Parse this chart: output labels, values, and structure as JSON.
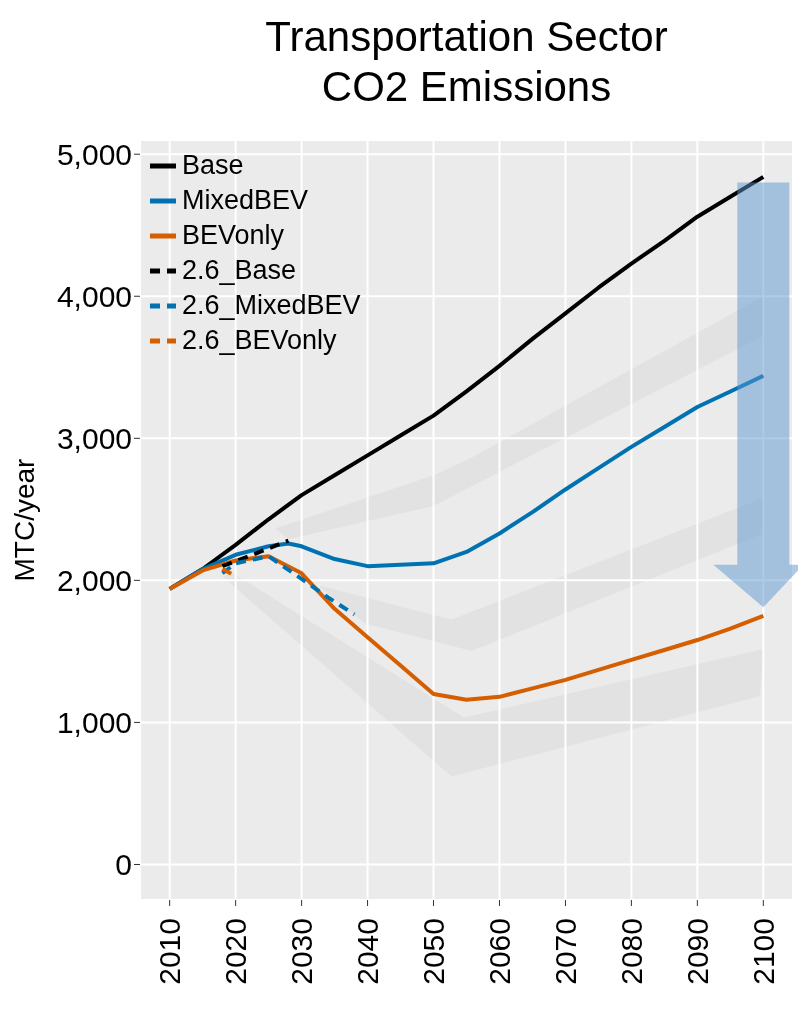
{
  "chart_data": {
    "type": "line",
    "title": "Transportation Sector CO2 Emissions",
    "ylabel": "MTC/year",
    "xlim": [
      2005.5,
      2104.5
    ],
    "xticks": [
      2010,
      2020,
      2030,
      2040,
      2050,
      2060,
      2070,
      2080,
      2090,
      2100
    ],
    "ylim": [
      -250,
      5100
    ],
    "yticks": [
      0,
      {
        "value": 1000,
        "label": "1,000"
      },
      {
        "value": 2000,
        "label": "2,000"
      },
      {
        "value": 3000,
        "label": "3,000"
      },
      {
        "value": 4000,
        "label": "4,000"
      },
      {
        "value": 5000,
        "label": "5,000"
      }
    ],
    "grid": true,
    "legend": "top left",
    "marker": "none",
    "series": [
      {
        "name": "Base",
        "color": "#000000",
        "line_style": "solid",
        "x": [
          2010,
          2015,
          2020,
          2025,
          2030,
          2035,
          2040,
          2045,
          2050,
          2055,
          2060,
          2065,
          2070,
          2075,
          2080,
          2085,
          2090,
          2095,
          2100
        ],
        "values": [
          1940,
          2080,
          2250,
          2430,
          2600,
          2740,
          2880,
          3020,
          3160,
          3330,
          3510,
          3700,
          3880,
          4060,
          4230,
          4390,
          4560,
          4700,
          4840
        ]
      },
      {
        "name": "MixedBEV",
        "color": "#0072b2",
        "line_style": "solid",
        "x": [
          2010,
          2015,
          2020,
          2025,
          2028,
          2030,
          2035,
          2040,
          2045,
          2050,
          2055,
          2060,
          2065,
          2070,
          2075,
          2080,
          2085,
          2090,
          2095,
          2100
        ],
        "values": [
          1940,
          2080,
          2180,
          2240,
          2260,
          2240,
          2150,
          2100,
          2110,
          2120,
          2200,
          2330,
          2480,
          2640,
          2790,
          2940,
          3080,
          3220,
          3330,
          3440
        ]
      },
      {
        "name": "BEVonly",
        "color": "#d55e00",
        "line_style": "solid",
        "x": [
          2010,
          2015,
          2020,
          2025,
          2030,
          2035,
          2040,
          2045,
          2050,
          2055,
          2060,
          2065,
          2070,
          2075,
          2080,
          2085,
          2090,
          2095,
          2100
        ],
        "values": [
          1940,
          2070,
          2140,
          2170,
          2050,
          1800,
          1600,
          1400,
          1200,
          1160,
          1180,
          1240,
          1300,
          1370,
          1440,
          1510,
          1580,
          1660,
          1750
        ]
      },
      {
        "name": "2.6_Base",
        "color": "#000000",
        "line_style": "dashed",
        "x": [
          2018,
          2022,
          2028
        ],
        "values": [
          2100,
          2170,
          2280
        ]
      },
      {
        "name": "2.6_MixedBEV",
        "color": "#0072b2",
        "line_style": "dashed",
        "x": [
          2018,
          2020,
          2025,
          2030,
          2034,
          2038
        ],
        "values": [
          2050,
          2120,
          2170,
          2010,
          1880,
          1760
        ]
      },
      {
        "name": "2.6_BEVonly",
        "color": "#d55e00",
        "line_style": "dashed",
        "x": [
          2018,
          2020
        ],
        "values": [
          2080,
          2030
        ]
      }
    ]
  }
}
